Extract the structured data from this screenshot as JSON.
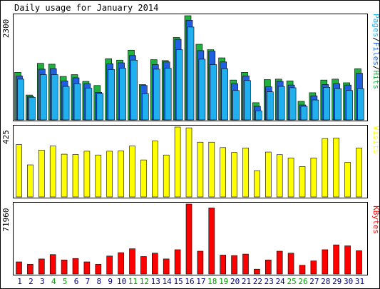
{
  "title": "Daily usage for January 2014",
  "colors": {
    "background": "#ffffff",
    "frame": "#000000",
    "hits": "#20b040",
    "files": "#2060e0",
    "pages": "#20b0f0",
    "visits": "#ffff00",
    "kbytes": "#ff0000",
    "weekday_label": "#000080",
    "weekend_label": "#00a000"
  },
  "chart_data": [
    {
      "type": "bar",
      "panel": "hits-files-pages",
      "y_max_label": "2300",
      "ylim": [
        0,
        2300
      ],
      "legend": {
        "placement": "right",
        "entries": [
          "Pages",
          "Files",
          "Hits"
        ],
        "separator": "/"
      },
      "categories": [
        "1",
        "2",
        "3",
        "4",
        "5",
        "6",
        "7",
        "8",
        "9",
        "10",
        "11",
        "12",
        "13",
        "14",
        "15",
        "16",
        "17",
        "18",
        "19",
        "20",
        "21",
        "22",
        "23",
        "24",
        "25",
        "26",
        "27",
        "28",
        "29",
        "30",
        "31"
      ],
      "series": [
        {
          "name": "Hits",
          "values": [
            1050,
            550,
            1250,
            1230,
            960,
            1000,
            850,
            760,
            1350,
            1320,
            1540,
            780,
            1330,
            1310,
            1820,
            2300,
            1670,
            1550,
            1370,
            880,
            1050,
            380,
            890,
            900,
            860,
            410,
            600,
            880,
            900,
            820,
            1130
          ]
        },
        {
          "name": "Files",
          "values": [
            970,
            520,
            1120,
            1130,
            860,
            930,
            800,
            610,
            1240,
            1260,
            1420,
            760,
            1220,
            1280,
            1780,
            2200,
            1530,
            1520,
            1280,
            800,
            970,
            300,
            730,
            850,
            770,
            330,
            530,
            780,
            800,
            770,
            1030
          ]
        },
        {
          "name": "Pages",
          "values": [
            900,
            500,
            1000,
            1000,
            740,
            800,
            700,
            580,
            1110,
            1140,
            1320,
            580,
            1120,
            1140,
            1550,
            2050,
            1340,
            1220,
            1130,
            650,
            870,
            200,
            620,
            740,
            710,
            300,
            440,
            720,
            690,
            650,
            690
          ]
        }
      ]
    },
    {
      "type": "bar",
      "panel": "visits",
      "y_max_label": "425",
      "ylim": [
        0,
        425
      ],
      "legend": {
        "placement": "right",
        "entries": [
          "Visits"
        ]
      },
      "categories": [
        "1",
        "2",
        "3",
        "4",
        "5",
        "6",
        "7",
        "8",
        "9",
        "10",
        "11",
        "12",
        "13",
        "14",
        "15",
        "16",
        "17",
        "18",
        "19",
        "20",
        "21",
        "22",
        "23",
        "24",
        "25",
        "26",
        "27",
        "28",
        "29",
        "30",
        "31"
      ],
      "series": [
        {
          "name": "Visits",
          "values": [
            318,
            195,
            285,
            310,
            260,
            258,
            278,
            255,
            278,
            280,
            310,
            225,
            340,
            255,
            425,
            420,
            333,
            333,
            300,
            270,
            298,
            160,
            273,
            257,
            237,
            185,
            237,
            355,
            358,
            210,
            298
          ]
        }
      ]
    },
    {
      "type": "bar",
      "panel": "kbytes",
      "y_max_label": "71960",
      "ylim": [
        0,
        71960
      ],
      "legend": {
        "placement": "right",
        "entries": [
          "KBytes"
        ]
      },
      "categories": [
        "1",
        "2",
        "3",
        "4",
        "5",
        "6",
        "7",
        "8",
        "9",
        "10",
        "11",
        "12",
        "13",
        "14",
        "15",
        "16",
        "17",
        "18",
        "19",
        "20",
        "21",
        "22",
        "23",
        "24",
        "25",
        "26",
        "27",
        "28",
        "29",
        "30",
        "31"
      ],
      "series": [
        {
          "name": "KBytes",
          "values": [
            12500,
            10000,
            15500,
            20000,
            14500,
            16000,
            12500,
            10000,
            18500,
            22000,
            26000,
            18000,
            21500,
            15500,
            25000,
            71960,
            23500,
            68000,
            19500,
            19000,
            20500,
            5000,
            14500,
            23500,
            21500,
            9000,
            13500,
            25000,
            30000,
            29000,
            24000
          ]
        }
      ]
    }
  ],
  "x_axis": {
    "labels": [
      "1",
      "2",
      "3",
      "4",
      "5",
      "6",
      "7",
      "8",
      "9",
      "10",
      "11",
      "12",
      "13",
      "14",
      "15",
      "16",
      "17",
      "18",
      "19",
      "20",
      "21",
      "22",
      "23",
      "24",
      "25",
      "26",
      "27",
      "28",
      "29",
      "30",
      "31"
    ],
    "weekend_days": [
      "4",
      "5",
      "11",
      "12",
      "18",
      "19",
      "25",
      "26"
    ]
  }
}
